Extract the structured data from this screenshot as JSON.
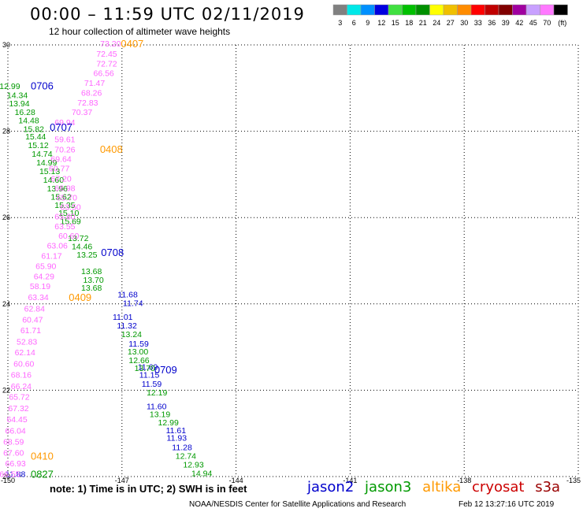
{
  "header": {
    "title": "00:00 – 11:59 UTC 02/11/2019",
    "subtitle": "12 hour collection of altimeter wave heights"
  },
  "color_scale": {
    "labels": [
      "3",
      "6",
      "9",
      "12",
      "15",
      "18",
      "21",
      "24",
      "27",
      "30",
      "33",
      "36",
      "39",
      "42",
      "45",
      "70",
      "(ft)"
    ],
    "colors": [
      "#808080",
      "#00e8e8",
      "#0090ff",
      "#0000e0",
      "#40e040",
      "#00c000",
      "#009000",
      "#ffff00",
      "#f0c000",
      "#ff8c00",
      "#ff0000",
      "#c00000",
      "#800000",
      "#a000a0",
      "#c8a0ff",
      "#ff78ff",
      "#000000"
    ]
  },
  "footer": {
    "note": "note: 1) Time is in UTC; 2) SWH is in feet",
    "satellites": [
      {
        "name": "jason2",
        "color": "#0000cc"
      },
      {
        "name": "jason3",
        "color": "#009900"
      },
      {
        "name": "altika",
        "color": "#ff9900"
      },
      {
        "name": "cryosat",
        "color": "#cc0000"
      },
      {
        "name": "s3a",
        "color": "#990000"
      }
    ],
    "credit": "NOAA/NESDIS Center for Satellite Applications and Research",
    "timestamp": "Feb 12 13:27:16 UTC 2019"
  },
  "chart_data": {
    "type": "scatter",
    "title": "00:00 – 11:59 UTC 02/11/2019",
    "subtitle": "12 hour collection of altimeter wave heights",
    "xlim": [
      -150,
      -135
    ],
    "ylim": [
      20,
      30
    ],
    "x_ticks": [
      "-150",
      "-147",
      "-144",
      "-141",
      "-138",
      "-135"
    ],
    "y_ticks": [
      "30",
      "28",
      "26",
      "24",
      "22",
      "20"
    ],
    "grid": true,
    "legend": "bottom",
    "series": [
      {
        "name": "jason2",
        "color": "#0000cc",
        "points": [
          {
            "lon": -146.85,
            "lat": 24.22,
            "v": "11.68"
          },
          {
            "lon": -146.71,
            "lat": 24.02,
            "v": "11.74"
          },
          {
            "lon": -146.98,
            "lat": 23.7,
            "v": "11.01"
          },
          {
            "lon": -146.87,
            "lat": 23.5,
            "v": "11.32"
          },
          {
            "lon": -146.56,
            "lat": 23.08,
            "v": "11.59"
          },
          {
            "lon": -146.32,
            "lat": 22.55,
            "v": "11.69"
          },
          {
            "lon": -146.28,
            "lat": 22.36,
            "v": "11.15"
          },
          {
            "lon": -146.22,
            "lat": 22.15,
            "v": "11.59"
          },
          {
            "lon": -146.09,
            "lat": 21.63,
            "v": "11.60"
          },
          {
            "lon": -145.58,
            "lat": 21.08,
            "v": "11.61"
          },
          {
            "lon": -145.56,
            "lat": 20.9,
            "v": "11.93"
          },
          {
            "lon": -145.42,
            "lat": 20.68,
            "v": "11.28"
          },
          {
            "lon": -149.8,
            "lat": 20.06,
            "v": "11.88"
          }
        ]
      },
      {
        "name": "jason3",
        "color": "#009900",
        "points": [
          {
            "lon": -149.95,
            "lat": 29.05,
            "v": "12.99"
          },
          {
            "lon": -149.75,
            "lat": 28.84,
            "v": "14.34"
          },
          {
            "lon": -149.7,
            "lat": 28.65,
            "v": "13.94"
          },
          {
            "lon": -149.55,
            "lat": 28.45,
            "v": "16.28"
          },
          {
            "lon": -149.45,
            "lat": 28.26,
            "v": "14.48"
          },
          {
            "lon": -149.32,
            "lat": 28.06,
            "v": "15.82"
          },
          {
            "lon": -149.27,
            "lat": 27.88,
            "v": "15.44"
          },
          {
            "lon": -149.2,
            "lat": 27.68,
            "v": "15.12"
          },
          {
            "lon": -149.1,
            "lat": 27.48,
            "v": "14.74"
          },
          {
            "lon": -148.98,
            "lat": 27.28,
            "v": "14.99"
          },
          {
            "lon": -148.9,
            "lat": 27.08,
            "v": "15.13"
          },
          {
            "lon": -148.8,
            "lat": 26.88,
            "v": "14.60"
          },
          {
            "lon": -148.7,
            "lat": 26.68,
            "v": "13.96"
          },
          {
            "lon": -148.6,
            "lat": 26.49,
            "v": "15.62"
          },
          {
            "lon": -148.5,
            "lat": 26.3,
            "v": "15.35"
          },
          {
            "lon": -148.4,
            "lat": 26.11,
            "v": "15.10"
          },
          {
            "lon": -148.35,
            "lat": 25.92,
            "v": "15.69"
          },
          {
            "lon": -148.15,
            "lat": 25.53,
            "v": "13.72"
          },
          {
            "lon": -148.05,
            "lat": 25.34,
            "v": "14.46"
          },
          {
            "lon": -147.92,
            "lat": 25.15,
            "v": "13.25"
          },
          {
            "lon": -147.8,
            "lat": 24.76,
            "v": "13.68"
          },
          {
            "lon": -147.75,
            "lat": 24.56,
            "v": "13.70"
          },
          {
            "lon": -147.8,
            "lat": 24.38,
            "v": "13.68"
          },
          {
            "lon": -146.75,
            "lat": 23.3,
            "v": "13.24"
          },
          {
            "lon": -146.58,
            "lat": 22.9,
            "v": "13.00"
          },
          {
            "lon": -146.55,
            "lat": 22.7,
            "v": "12.66"
          },
          {
            "lon": -146.4,
            "lat": 22.52,
            "v": "13.70"
          },
          {
            "lon": -146.08,
            "lat": 21.95,
            "v": "12.19"
          },
          {
            "lon": -146.0,
            "lat": 21.45,
            "v": "13.19"
          },
          {
            "lon": -145.78,
            "lat": 21.26,
            "v": "12.99"
          },
          {
            "lon": -145.32,
            "lat": 20.48,
            "v": "12.74"
          },
          {
            "lon": -145.12,
            "lat": 20.28,
            "v": "12.93"
          },
          {
            "lon": -144.9,
            "lat": 20.08,
            "v": "14.94"
          }
        ]
      },
      {
        "name": "altika",
        "color": "#ff66ff",
        "points": [
          {
            "lon": -147.3,
            "lat": 30.04,
            "v": "73.20"
          },
          {
            "lon": -147.4,
            "lat": 29.8,
            "v": "72.45"
          },
          {
            "lon": -147.4,
            "lat": 29.57,
            "v": "72.72"
          },
          {
            "lon": -147.48,
            "lat": 29.35,
            "v": "66.56"
          },
          {
            "lon": -147.72,
            "lat": 29.12,
            "v": "71.47"
          },
          {
            "lon": -147.8,
            "lat": 28.9,
            "v": "68.26"
          },
          {
            "lon": -147.9,
            "lat": 28.67,
            "v": "72.83"
          },
          {
            "lon": -148.05,
            "lat": 28.45,
            "v": "70.37"
          },
          {
            "lon": -148.5,
            "lat": 28.21,
            "v": "69.94"
          },
          {
            "lon": -148.5,
            "lat": 27.82,
            "v": "59.61"
          },
          {
            "lon": -148.5,
            "lat": 27.58,
            "v": "70.26"
          },
          {
            "lon": -148.6,
            "lat": 27.36,
            "v": "69.64"
          },
          {
            "lon": -148.65,
            "lat": 27.14,
            "v": "60.77"
          },
          {
            "lon": -148.6,
            "lat": 26.91,
            "v": "67.20"
          },
          {
            "lon": -148.5,
            "lat": 26.69,
            "v": "66.98"
          },
          {
            "lon": -148.45,
            "lat": 26.47,
            "v": "65.70"
          },
          {
            "lon": -148.35,
            "lat": 26.25,
            "v": "63.50"
          },
          {
            "lon": -148.5,
            "lat": 26.03,
            "v": "65.80"
          },
          {
            "lon": -148.5,
            "lat": 25.8,
            "v": "63.55"
          },
          {
            "lon": -148.4,
            "lat": 25.58,
            "v": "60.60"
          },
          {
            "lon": -148.7,
            "lat": 25.36,
            "v": "63.06"
          },
          {
            "lon": -148.85,
            "lat": 25.12,
            "v": "61.17"
          },
          {
            "lon": -149.0,
            "lat": 24.88,
            "v": "65.90"
          },
          {
            "lon": -149.05,
            "lat": 24.64,
            "v": "64.29"
          },
          {
            "lon": -149.15,
            "lat": 24.42,
            "v": "58.19"
          },
          {
            "lon": -149.2,
            "lat": 24.16,
            "v": "63.34"
          },
          {
            "lon": -149.3,
            "lat": 23.9,
            "v": "62.84"
          },
          {
            "lon": -149.35,
            "lat": 23.64,
            "v": "60.47"
          },
          {
            "lon": -149.4,
            "lat": 23.39,
            "v": "61.71"
          },
          {
            "lon": -149.5,
            "lat": 23.13,
            "v": "52.83"
          },
          {
            "lon": -149.55,
            "lat": 22.88,
            "v": "62.14"
          },
          {
            "lon": -149.58,
            "lat": 22.62,
            "v": "60.60"
          },
          {
            "lon": -149.65,
            "lat": 22.36,
            "v": "68.16"
          },
          {
            "lon": -149.65,
            "lat": 22.1,
            "v": "66.24"
          },
          {
            "lon": -149.7,
            "lat": 21.85,
            "v": "65.72"
          },
          {
            "lon": -149.72,
            "lat": 21.59,
            "v": "67.32"
          },
          {
            "lon": -149.76,
            "lat": 21.33,
            "v": "64.45"
          },
          {
            "lon": -149.8,
            "lat": 21.07,
            "v": "66.04"
          },
          {
            "lon": -149.85,
            "lat": 20.81,
            "v": "68.59"
          },
          {
            "lon": -149.85,
            "lat": 20.56,
            "v": "67.60"
          },
          {
            "lon": -149.8,
            "lat": 20.31,
            "v": "66.93"
          },
          {
            "lon": -149.95,
            "lat": 20.06,
            "v": "66.55"
          }
        ]
      }
    ],
    "pass_labels": [
      {
        "lon": -146.73,
        "lat": 30.04,
        "text": "0407",
        "color": "#ff9900"
      },
      {
        "lon": -149.1,
        "lat": 29.06,
        "text": "0706",
        "color": "#0000cc"
      },
      {
        "lon": -148.6,
        "lat": 28.1,
        "text": "0707",
        "color": "#0000cc"
      },
      {
        "lon": -147.28,
        "lat": 27.59,
        "text": "0408",
        "color": "#ff9900"
      },
      {
        "lon": -147.25,
        "lat": 25.2,
        "text": "0708",
        "color": "#0000cc"
      },
      {
        "lon": -148.1,
        "lat": 24.16,
        "text": "0409",
        "color": "#ff9900"
      },
      {
        "lon": -145.85,
        "lat": 22.48,
        "text": "0709",
        "color": "#0000cc"
      },
      {
        "lon": -149.1,
        "lat": 20.48,
        "text": "0410",
        "color": "#ff9900"
      },
      {
        "lon": -149.1,
        "lat": 20.06,
        "text": "0827",
        "color": "#009900"
      }
    ]
  }
}
